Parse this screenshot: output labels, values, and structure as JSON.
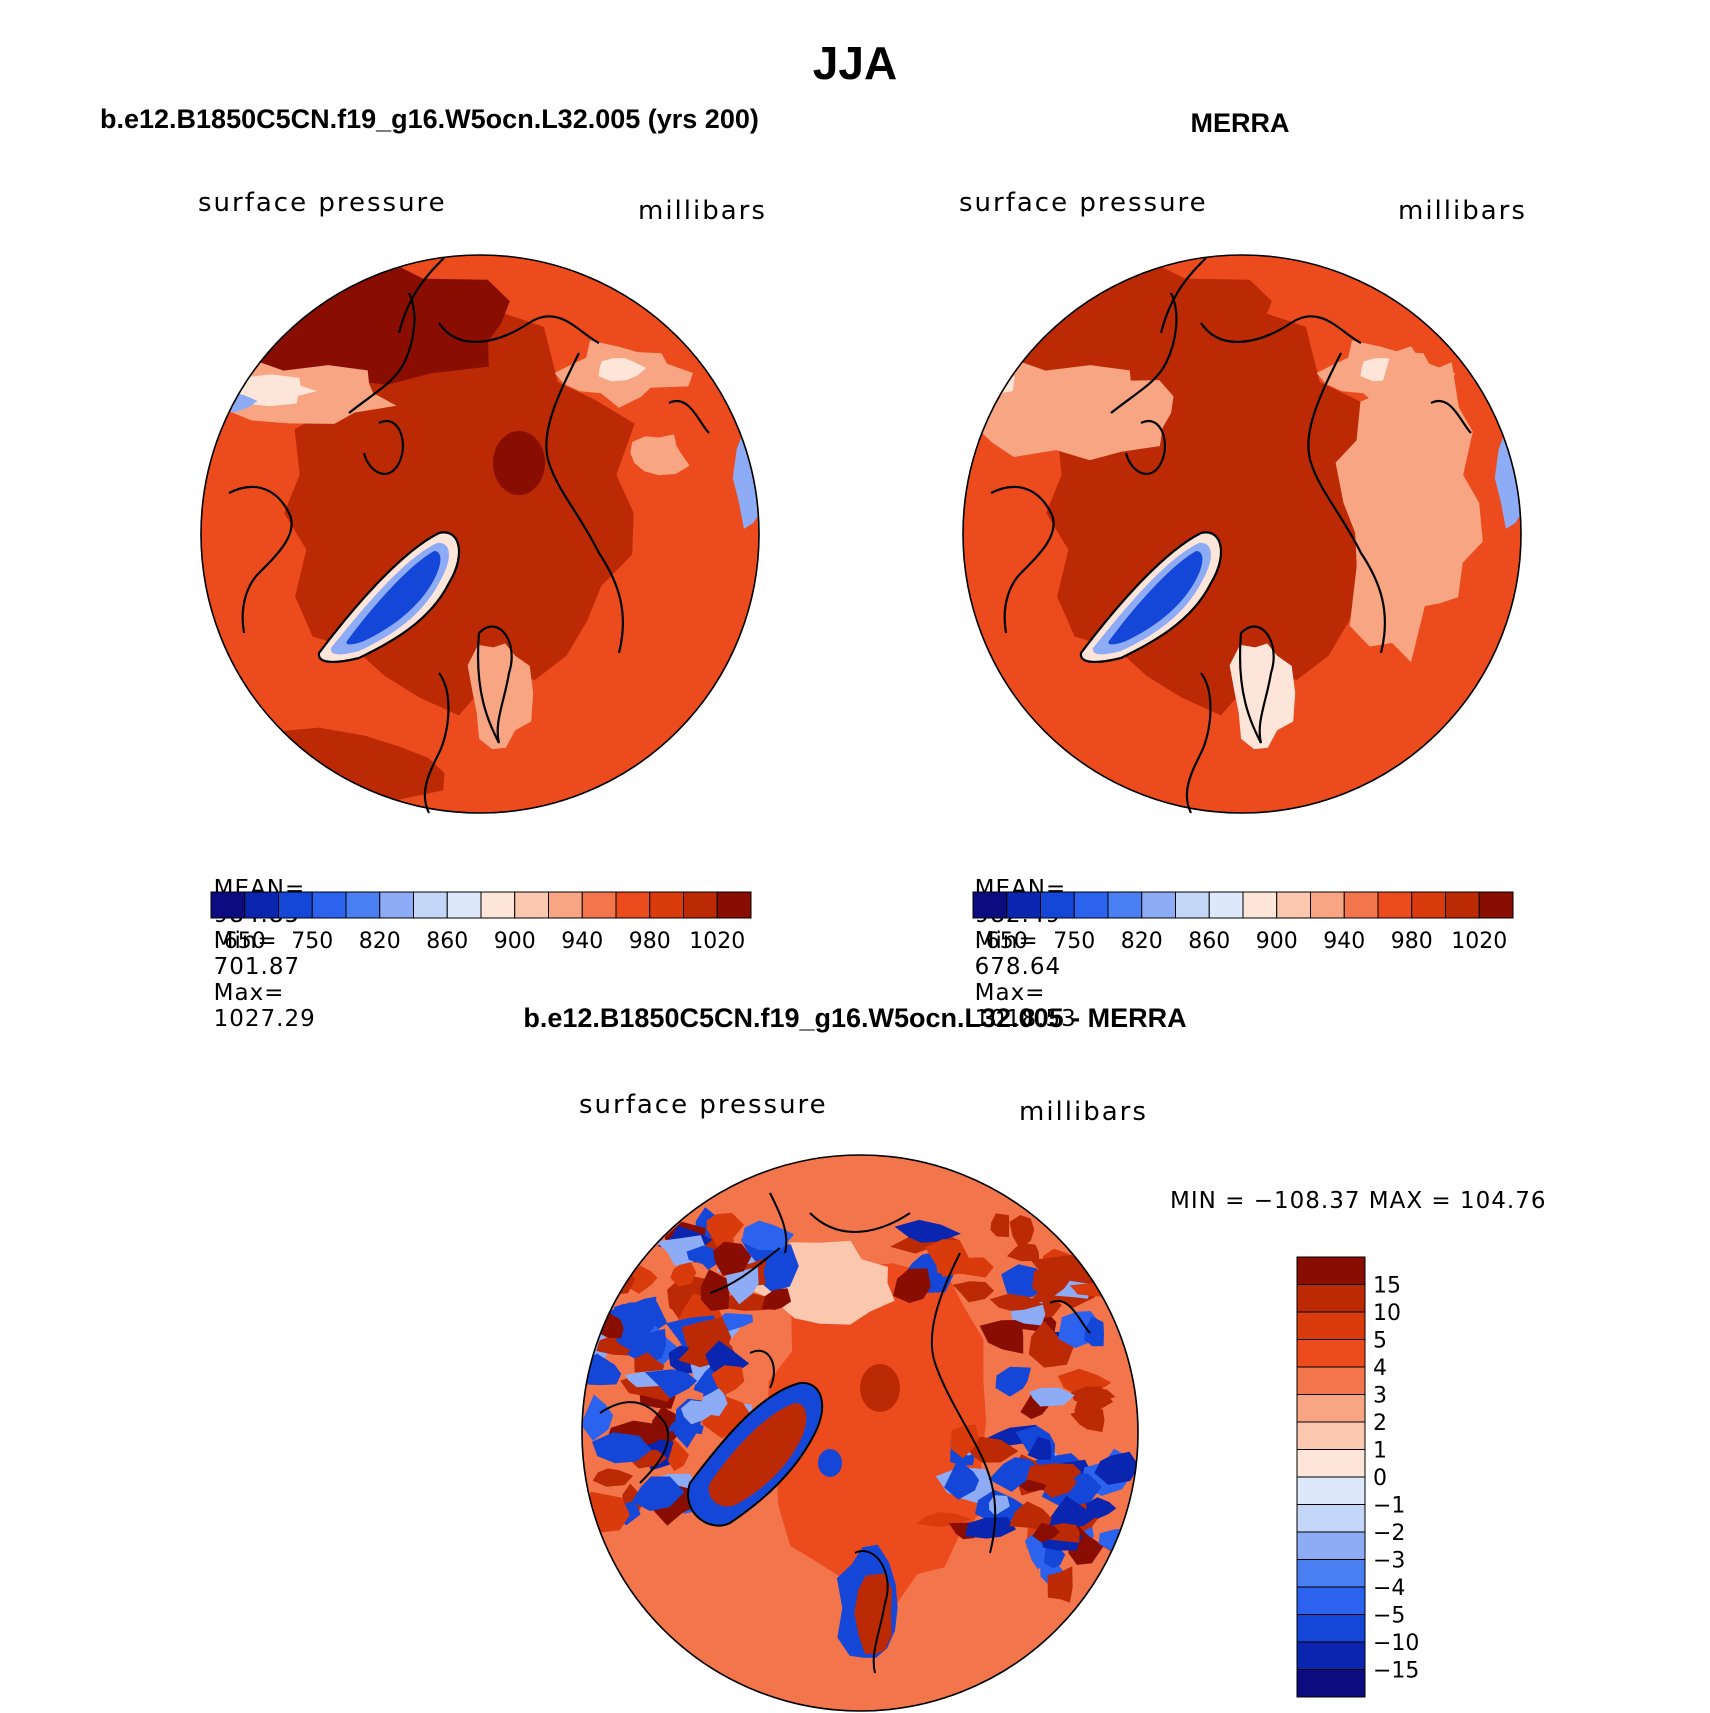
{
  "figure": {
    "season": "JJA",
    "title_model": "b.e12.B1850C5CN.f19_g16.W5ocn.L32.005 (yrs 200)",
    "title_obs": "MERRA",
    "title_diff": "b.e12.B1850C5CN.f19_g16.W5ocn.L32.005 - MERRA"
  },
  "panels": {
    "model": {
      "left_label": "surface pressure",
      "right_label": "millibars",
      "stats_mean_label": "MEAN=",
      "stats_mean": "984.85",
      "stats_min_label": "Min=",
      "stats_min": "701.87",
      "stats_max_label": "Max=",
      "stats_max": "1027.29"
    },
    "obs": {
      "left_label": "surface pressure",
      "right_label": "millibars",
      "stats_mean_label": "MEAN=",
      "stats_mean": "982.49",
      "stats_min_label": "Min=",
      "stats_min": "678.64",
      "stats_max_label": "Max=",
      "stats_max": "1018.53"
    },
    "diff": {
      "left_label": "surface pressure",
      "right_label": "millibars",
      "minmax": "MIN = −108.37 MAX = 104.76"
    }
  },
  "chart_data": [
    {
      "type": "heatmap",
      "projection": "north-polar-stereographic",
      "title": "b.e12.B1850C5CN.f19_g16.W5ocn.L32.005 (yrs 200)",
      "variable": "surface pressure",
      "units": "millibars",
      "mean": 984.85,
      "min": 701.87,
      "max": 1027.29,
      "colorbar_levels": [
        650,
        750,
        820,
        860,
        900,
        940,
        980,
        1020
      ],
      "colorbar_tick_labels": [
        "650",
        "750",
        "820",
        "860",
        "900",
        "940",
        "980",
        "1020"
      ]
    },
    {
      "type": "heatmap",
      "projection": "north-polar-stereographic",
      "title": "MERRA",
      "variable": "surface pressure",
      "units": "millibars",
      "mean": 982.49,
      "min": 678.64,
      "max": 1018.53,
      "colorbar_levels": [
        650,
        750,
        820,
        860,
        900,
        940,
        980,
        1020
      ],
      "colorbar_tick_labels": [
        "650",
        "750",
        "820",
        "860",
        "900",
        "940",
        "980",
        "1020"
      ]
    },
    {
      "type": "heatmap",
      "projection": "north-polar-stereographic",
      "title": "b.e12.B1850C5CN.f19_g16.W5ocn.L32.005 - MERRA",
      "variable": "surface pressure",
      "units": "millibars",
      "min": -108.37,
      "max": 104.76,
      "colorbar_levels": [
        15,
        10,
        5,
        4,
        3,
        2,
        1,
        0,
        -1,
        -2,
        -3,
        -4,
        -5,
        -10,
        -15
      ],
      "colorbar_tick_labels": [
        "15",
        "10",
        "5",
        "4",
        "3",
        "2",
        "1",
        "0",
        "−1",
        "−2",
        "−3",
        "−4",
        "−5",
        "−10",
        "−15"
      ]
    }
  ],
  "colorbar_colors": {
    "abs": [
      "#0c0c80",
      "#0a25b0",
      "#1447d8",
      "#2b62ee",
      "#4a7ff2",
      "#8eacf5",
      "#c4d6f8",
      "#dde9fb",
      "#fde6d9",
      "#fbc7af",
      "#f7a583",
      "#f2754c",
      "#ec4b1e",
      "#d93b0c",
      "#bb2a05",
      "#8a0d02"
    ],
    "diff": [
      "#8a0d02",
      "#bb2a05",
      "#d93b0c",
      "#ec4b1e",
      "#f2754c",
      "#f7a583",
      "#fbc7af",
      "#fde6d9",
      "#dde9fb",
      "#c4d6f8",
      "#8eacf5",
      "#4a7ff2",
      "#2b62ee",
      "#1447d8",
      "#0a25b0",
      "#0c0c80"
    ]
  },
  "map_colors": {
    "ocean_high": "#bb2a05",
    "mid": "#d93b0c",
    "land": "#ec4b1e",
    "light": "#f7a583",
    "pale": "#fde6d9",
    "blue_mid": "#1447d8",
    "blue_light": "#8eacf5",
    "peak": "#8a0d02",
    "coast": "#000000"
  }
}
